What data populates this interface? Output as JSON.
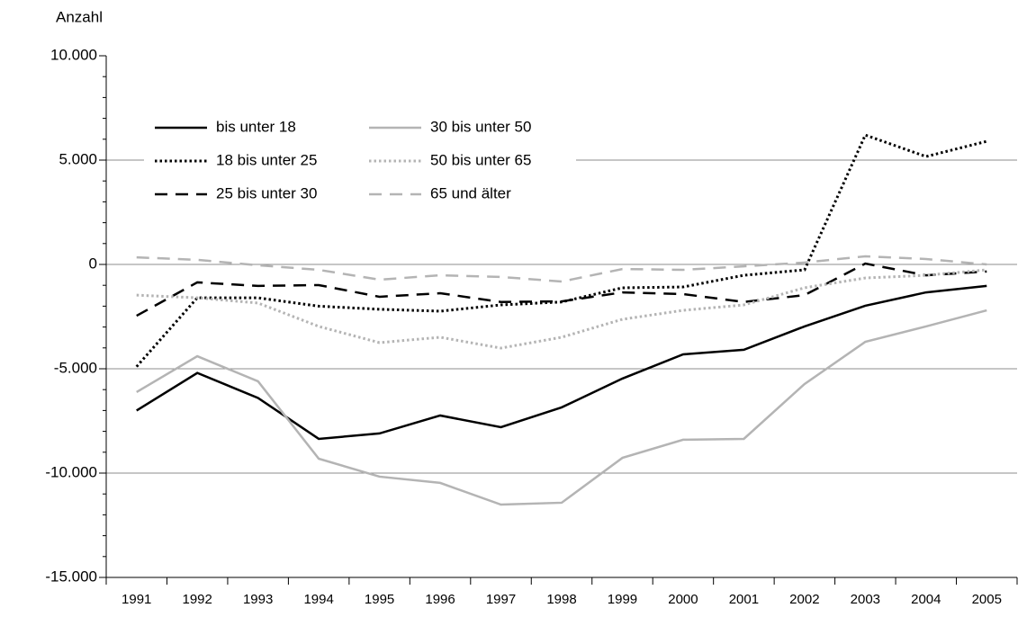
{
  "chart_data": {
    "type": "line",
    "y_label": "Anzahl",
    "categories": [
      "1991",
      "1992",
      "1993",
      "1994",
      "1995",
      "1996",
      "1997",
      "1998",
      "1999",
      "2000",
      "2001",
      "2002",
      "2003",
      "2004",
      "2005"
    ],
    "series": [
      {
        "name": "bis unter 18",
        "color": "#000000",
        "style": "solid",
        "values": [
          -7000,
          -5200,
          -6400,
          -8360,
          -8100,
          -7240,
          -7800,
          -6850,
          -5470,
          -4310,
          -4090,
          -2970,
          -1980,
          -1340,
          -1030
        ]
      },
      {
        "name": "18 bis unter 25",
        "color": "#000000",
        "style": "dotted",
        "values": [
          -4900,
          -1600,
          -1600,
          -2000,
          -2150,
          -2240,
          -1940,
          -1800,
          -1120,
          -1080,
          -520,
          -260,
          6200,
          5170,
          5900
        ]
      },
      {
        "name": "25 bis unter 30",
        "color": "#000000",
        "style": "dashed",
        "values": [
          -2460,
          -860,
          -1030,
          -990,
          -1550,
          -1380,
          -1800,
          -1770,
          -1340,
          -1420,
          -1800,
          -1470,
          40,
          -520,
          -340
        ]
      },
      {
        "name": "30 bis unter 50",
        "color": "#b4b4b4",
        "style": "solid",
        "values": [
          -6120,
          -4400,
          -5600,
          -9310,
          -10170,
          -10470,
          -11510,
          -11420,
          -9270,
          -8400,
          -8360,
          -5730,
          -3710,
          -2970,
          -2200
        ]
      },
      {
        "name": "50 bis unter 65",
        "color": "#b4b4b4",
        "style": "dotted",
        "values": [
          -1470,
          -1600,
          -1850,
          -2970,
          -3750,
          -3490,
          -4010,
          -3490,
          -2630,
          -2200,
          -1940,
          -1120,
          -650,
          -520,
          -260
        ]
      },
      {
        "name": "65 und älter",
        "color": "#b4b4b4",
        "style": "dashed",
        "values": [
          340,
          220,
          -40,
          -260,
          -730,
          -520,
          -600,
          -820,
          -220,
          -260,
          -90,
          90,
          390,
          260,
          0
        ]
      }
    ],
    "ylim": [
      -15000,
      10000
    ],
    "yticks": [
      {
        "value": -15000,
        "label": "-15.000"
      },
      {
        "value": -10000,
        "label": "-10.000"
      },
      {
        "value": -5000,
        "label": "-5.000"
      },
      0,
      {
        "value": 5000,
        "label": "5.000"
      },
      {
        "value": 10000,
        "label": "10.000"
      }
    ],
    "grid": true,
    "legend": "upper-left"
  }
}
